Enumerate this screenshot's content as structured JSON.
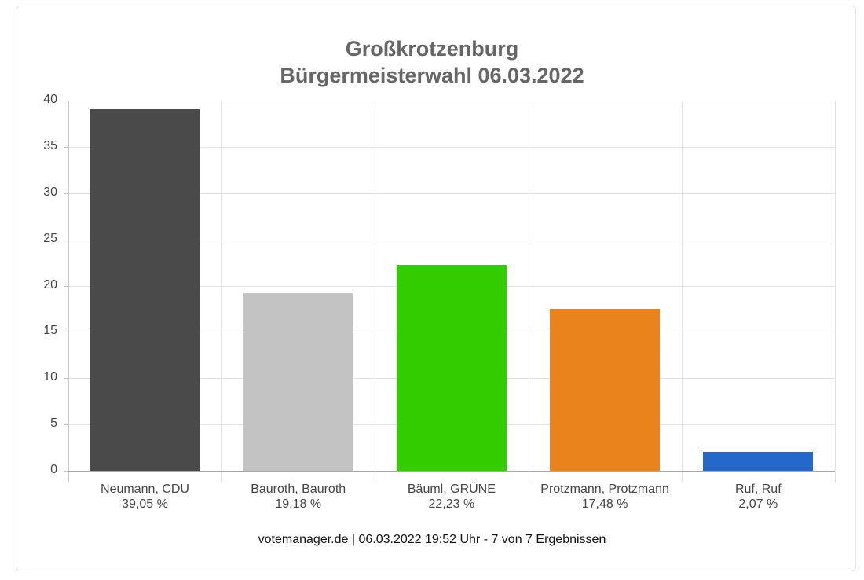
{
  "chart_data": {
    "type": "bar",
    "title": "Großkrotzenburg",
    "subtitle": "Bürgermeisterwahl 06.03.2022",
    "categories": [
      "Neumann, CDU",
      "Bauroth, Bauroth",
      "Bäuml, GRÜNE",
      "Protzmann, Protzmann",
      "Ruf, Ruf"
    ],
    "values": [
      39.05,
      19.18,
      22.23,
      17.48,
      2.07
    ],
    "value_labels": [
      "39,05 %",
      "19,18 %",
      "22,23 %",
      "17,48 %",
      "2,07 %"
    ],
    "colors": [
      "#4a4a4a",
      "#c3c3c3",
      "#33cc00",
      "#eb831c",
      "#2468cc"
    ],
    "xlabel": "",
    "ylabel": "",
    "ylim": [
      0,
      40
    ],
    "yticks": [
      0,
      5,
      10,
      15,
      20,
      25,
      30,
      35,
      40
    ],
    "grid": true,
    "legend": "none"
  },
  "title_line1": "Großkrotzenburg",
  "title_line2": "Bürgermeisterwahl 06.03.2022",
  "footer": "votemanager.de | 06.03.2022 19:52 Uhr - 7 von 7 Ergebnissen"
}
